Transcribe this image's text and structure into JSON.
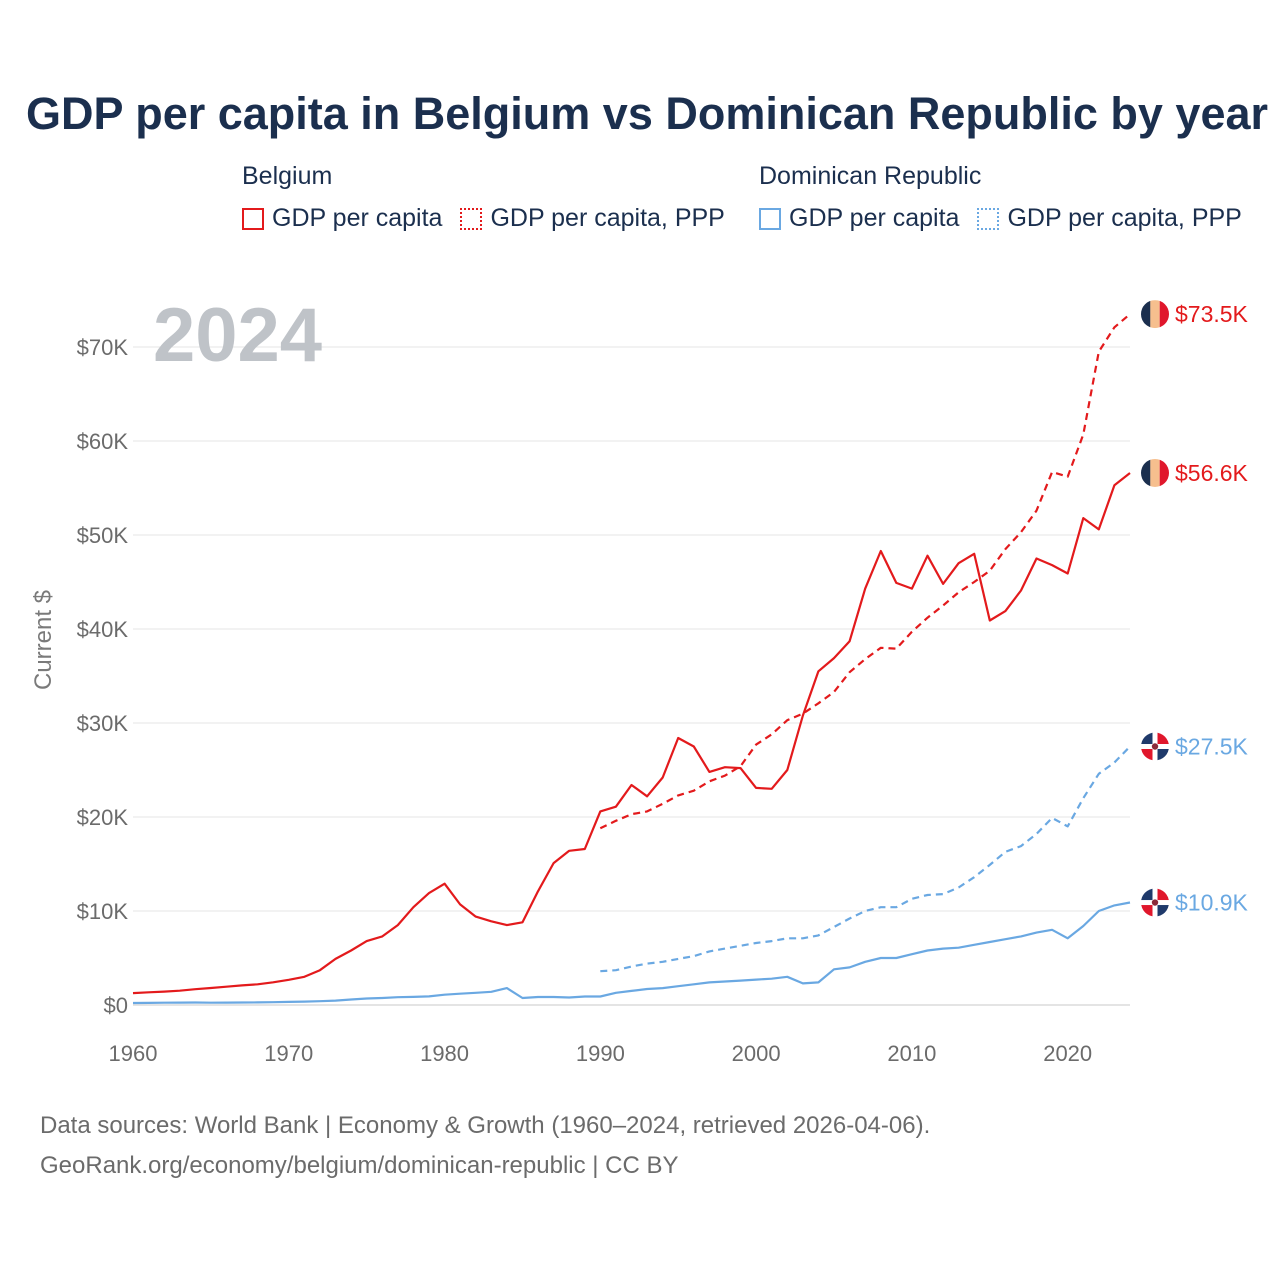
{
  "title": "GDP per capita in Belgium vs Dominican Republic by year",
  "year_label": "2024",
  "legend": {
    "groups": [
      {
        "name": "Belgium",
        "color": "#e31a1c",
        "items": [
          {
            "label": "GDP per capita",
            "style": "solid"
          },
          {
            "label": "GDP per capita, PPP",
            "style": "dotted"
          }
        ]
      },
      {
        "name": "Dominican Republic",
        "color": "#6aa8e2",
        "items": [
          {
            "label": "GDP per capita",
            "style": "solid"
          },
          {
            "label": "GDP per capita, PPP",
            "style": "dotted"
          }
        ]
      }
    ]
  },
  "sources": {
    "line1": "Data sources: World Bank | Economy & Growth (1960–2024, retrieved 2026-04-06).",
    "line2": "GeoRank.org/economy/belgium/dominican-republic | CC BY"
  },
  "chart_data": {
    "type": "line",
    "title": "GDP per capita in Belgium vs Dominican Republic by year",
    "xlabel": "",
    "ylabel": "Current $",
    "xlim": [
      1960,
      2024
    ],
    "ylim": [
      0,
      75000
    ],
    "x_ticks": [
      1960,
      1970,
      1980,
      1990,
      2000,
      2010,
      2020
    ],
    "x_tick_labels": [
      "1960",
      "1970",
      "1980",
      "1990",
      "2000",
      "2010",
      "2020"
    ],
    "y_ticks": [
      0,
      10000,
      20000,
      30000,
      40000,
      50000,
      60000,
      70000
    ],
    "y_tick_labels": [
      "$0",
      "$10K",
      "$20K",
      "$30K",
      "$40K",
      "$50K",
      "$60K",
      "$70K"
    ],
    "grid": true,
    "series": [
      {
        "name": "Belgium GDP per capita",
        "country": "Belgium",
        "dash": "solid",
        "color": "#e31a1c",
        "end_label": "$56.6K",
        "x": [
          1960,
          1961,
          1962,
          1963,
          1964,
          1965,
          1966,
          1967,
          1968,
          1969,
          1970,
          1971,
          1972,
          1973,
          1974,
          1975,
          1976,
          1977,
          1978,
          1979,
          1980,
          1981,
          1982,
          1983,
          1984,
          1985,
          1986,
          1987,
          1988,
          1989,
          1990,
          1991,
          1992,
          1993,
          1994,
          1995,
          1996,
          1997,
          1998,
          1999,
          2000,
          2001,
          2002,
          2003,
          2004,
          2005,
          2006,
          2007,
          2008,
          2009,
          2010,
          2011,
          2012,
          2013,
          2014,
          2015,
          2016,
          2017,
          2018,
          2019,
          2020,
          2021,
          2022,
          2023,
          2024
        ],
        "values": [
          1270,
          1350,
          1430,
          1520,
          1680,
          1810,
          1950,
          2080,
          2200,
          2420,
          2680,
          3000,
          3700,
          4900,
          5800,
          6800,
          7300,
          8500,
          10400,
          11900,
          12900,
          10700,
          9400,
          8900,
          8500,
          8800,
          12100,
          15100,
          16400,
          16600,
          20600,
          21100,
          23400,
          22200,
          24200,
          28400,
          27500,
          24800,
          25300,
          25200,
          23100,
          23000,
          25000,
          30800,
          35500,
          36900,
          38700,
          44300,
          48300,
          44900,
          44300,
          47800,
          44800,
          47000,
          48000,
          40900,
          41900,
          44100,
          47500,
          46800,
          45900,
          51800,
          50600,
          55300,
          56600
        ]
      },
      {
        "name": "Belgium GDP per capita, PPP",
        "country": "Belgium",
        "dash": "dashed",
        "color": "#e31a1c",
        "end_label": "$73.5K",
        "x": [
          1990,
          1991,
          1992,
          1993,
          1994,
          1995,
          1996,
          1997,
          1998,
          1999,
          2000,
          2001,
          2002,
          2003,
          2004,
          2005,
          2006,
          2007,
          2008,
          2009,
          2010,
          2011,
          2012,
          2013,
          2014,
          2015,
          2016,
          2017,
          2018,
          2019,
          2020,
          2021,
          2022,
          2023,
          2024
        ],
        "values": [
          18800,
          19600,
          20300,
          20600,
          21400,
          22300,
          22800,
          23800,
          24400,
          25400,
          27700,
          28800,
          30300,
          31000,
          32100,
          33300,
          35400,
          36800,
          38000,
          37900,
          39700,
          41200,
          42500,
          43900,
          45000,
          46200,
          48500,
          50300,
          52600,
          56700,
          56200,
          60700,
          69500,
          72100,
          73500
        ]
      },
      {
        "name": "Dominican Republic GDP per capita",
        "country": "Dominican Republic",
        "dash": "solid",
        "color": "#6aa8e2",
        "end_label": "$10.9K",
        "x": [
          1960,
          1961,
          1962,
          1963,
          1964,
          1965,
          1966,
          1967,
          1968,
          1969,
          1970,
          1971,
          1972,
          1973,
          1974,
          1975,
          1976,
          1977,
          1978,
          1979,
          1980,
          1981,
          1982,
          1983,
          1984,
          1985,
          1986,
          1987,
          1988,
          1989,
          1990,
          1991,
          1992,
          1993,
          1994,
          1995,
          1996,
          1997,
          1998,
          1999,
          2000,
          2001,
          2002,
          2003,
          2004,
          2005,
          2006,
          2007,
          2008,
          2009,
          2010,
          2011,
          2012,
          2013,
          2014,
          2015,
          2016,
          2017,
          2018,
          2019,
          2020,
          2021,
          2022,
          2023,
          2024
        ],
        "values": [
          210,
          220,
          240,
          250,
          270,
          240,
          250,
          270,
          280,
          300,
          330,
          360,
          400,
          470,
          590,
          690,
          740,
          830,
          860,
          920,
          1100,
          1200,
          1300,
          1400,
          1800,
          750,
          850,
          850,
          800,
          900,
          900,
          1300,
          1500,
          1700,
          1800,
          2000,
          2200,
          2400,
          2500,
          2600,
          2700,
          2800,
          3000,
          2300,
          2400,
          3800,
          4000,
          4600,
          5000,
          5000,
          5400,
          5800,
          6000,
          6100,
          6400,
          6700,
          7000,
          7300,
          7700,
          8000,
          7100,
          8400,
          10000,
          10600,
          10900
        ]
      },
      {
        "name": "Dominican Republic GDP per capita, PPP",
        "country": "Dominican Republic",
        "dash": "dashed",
        "color": "#6aa8e2",
        "end_label": "$27.5K",
        "x": [
          1990,
          1991,
          1992,
          1993,
          1994,
          1995,
          1996,
          1997,
          1998,
          1999,
          2000,
          2001,
          2002,
          2003,
          2004,
          2005,
          2006,
          2007,
          2008,
          2009,
          2010,
          2011,
          2012,
          2013,
          2014,
          2015,
          2016,
          2017,
          2018,
          2019,
          2020,
          2021,
          2022,
          2023,
          2024
        ],
        "values": [
          3600,
          3700,
          4100,
          4400,
          4600,
          4900,
          5200,
          5700,
          6000,
          6300,
          6600,
          6800,
          7100,
          7100,
          7400,
          8300,
          9200,
          10000,
          10400,
          10400,
          11300,
          11700,
          11800,
          12500,
          13600,
          14900,
          16300,
          16900,
          18200,
          19900,
          19000,
          22000,
          24600,
          25800,
          27500
        ]
      }
    ]
  }
}
